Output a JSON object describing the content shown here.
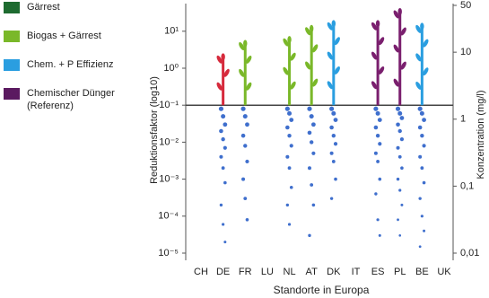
{
  "chart_data": {
    "type": "strip",
    "ylabel": "Reduktionsfaktor (log10)",
    "y2label": "Konzentration (mg/l)",
    "xlabel": "Standorte in Europa",
    "categories": [
      "CH",
      "DE",
      "FR",
      "LU",
      "NL",
      "AT",
      "DK",
      "IT",
      "ES",
      "PL",
      "BE",
      "UK"
    ],
    "ylim": [
      1e-05,
      50
    ],
    "log_y": true,
    "yticks": [
      {
        "value": 10,
        "label": "10¹"
      },
      {
        "value": 1,
        "label": "10⁰"
      },
      {
        "value": 0.1,
        "label": "10⁻¹"
      },
      {
        "value": 0.01,
        "label": "10⁻²"
      },
      {
        "value": 0.001,
        "label": "10⁻³"
      },
      {
        "value": 0.0001,
        "label": "10⁻⁴"
      },
      {
        "value": 1e-05,
        "label": "10⁻⁵"
      }
    ],
    "y2lim": [
      0.01,
      50
    ],
    "y2ticks": [
      50,
      10,
      1,
      {
        "value": 0.1,
        "label": "0,1"
      },
      {
        "value": 0.01,
        "label": "0,01"
      }
    ],
    "reference_line": 0.1,
    "legend": [
      {
        "name": "Gärrest",
        "color": "#1e6b30"
      },
      {
        "name": "Biogas + Gärrest",
        "color": "#7ab829"
      },
      {
        "name": "Chem. + P Effizienz",
        "color": "#2a9ee0"
      },
      {
        "name": "Chemischer Dünger (Referenz)",
        "color": "#5b1a60"
      }
    ],
    "plants": {
      "values": [
        null,
        2.4,
        5.5,
        null,
        7,
        14,
        19,
        null,
        19,
        40,
        16,
        null
      ],
      "colors": [
        null,
        "#d62a3c",
        "#7ab829",
        null,
        "#7ab829",
        "#7ab829",
        "#2a9ee0",
        null,
        "#7a1f6e",
        "#7a1f6e",
        "#2a9ee0",
        null
      ]
    },
    "point_color": "#2a5fc8",
    "points": [
      [],
      [
        0.08,
        0.05,
        0.03,
        0.02,
        0.012,
        0.007,
        0.004,
        0.002,
        0.0008,
        0.0002,
        6e-05,
        2e-05
      ],
      [
        0.08,
        0.05,
        0.03,
        0.015,
        0.008,
        0.003,
        0.001,
        0.0003,
        8e-05
      ],
      [],
      [
        0.08,
        0.06,
        0.04,
        0.025,
        0.015,
        0.008,
        0.004,
        0.002,
        0.0006,
        0.0002,
        6e-05
      ],
      [
        0.08,
        0.05,
        0.03,
        0.018,
        0.01,
        0.005,
        0.002,
        0.0007,
        0.0002,
        3e-05
      ],
      [
        0.08,
        0.06,
        0.04,
        0.025,
        0.015,
        0.009,
        0.005,
        0.003,
        0.001,
        0.0003
      ],
      [],
      [
        0.08,
        0.06,
        0.04,
        0.025,
        0.015,
        0.009,
        0.005,
        0.003,
        0.001,
        0.0004,
        8e-05,
        3e-05
      ],
      [
        0.08,
        0.06,
        0.045,
        0.03,
        0.02,
        0.012,
        0.007,
        0.004,
        0.002,
        0.001,
        0.0005,
        0.0002,
        8e-05,
        3e-05
      ],
      [
        0.08,
        0.06,
        0.04,
        0.025,
        0.015,
        0.008,
        0.004,
        0.002,
        0.0008,
        0.0003,
        0.0001,
        4e-05,
        1.5e-05
      ],
      []
    ]
  }
}
